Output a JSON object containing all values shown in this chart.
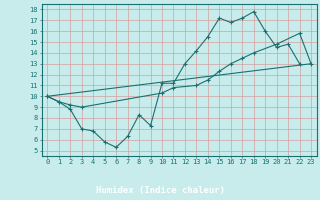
{
  "xlabel": "Humidex (Indice chaleur)",
  "bg_color": "#c8ecec",
  "line_color": "#1a7070",
  "grid_color": "#d4a0a0",
  "bottom_bar_color": "#2a8080",
  "xlim": [
    -0.5,
    23.5
  ],
  "ylim": [
    4.5,
    18.5
  ],
  "xticks": [
    0,
    1,
    2,
    3,
    4,
    5,
    6,
    7,
    8,
    9,
    10,
    11,
    12,
    13,
    14,
    15,
    16,
    17,
    18,
    19,
    20,
    21,
    22,
    23
  ],
  "yticks": [
    5,
    6,
    7,
    8,
    9,
    10,
    11,
    12,
    13,
    14,
    15,
    16,
    17,
    18
  ],
  "line1_x": [
    0,
    1,
    2,
    3,
    4,
    5,
    6,
    7,
    8,
    9,
    10,
    11,
    12,
    13,
    14,
    15,
    16,
    17,
    18,
    19,
    20,
    21,
    22
  ],
  "line1_y": [
    10.0,
    9.5,
    8.8,
    7.0,
    6.8,
    5.8,
    5.3,
    6.3,
    8.3,
    7.3,
    11.2,
    11.2,
    13.0,
    14.2,
    15.5,
    17.2,
    16.8,
    17.2,
    17.8,
    16.0,
    14.5,
    14.8,
    13.0
  ],
  "line2_x": [
    0,
    1,
    2,
    3,
    10,
    11,
    13,
    14,
    15,
    16,
    17,
    18,
    20,
    22,
    23
  ],
  "line2_y": [
    10.0,
    9.5,
    9.2,
    9.0,
    10.3,
    10.8,
    11.0,
    11.5,
    12.3,
    13.0,
    13.5,
    14.0,
    14.8,
    15.8,
    13.0
  ],
  "line3_x": [
    0,
    23
  ],
  "line3_y": [
    10.0,
    13.0
  ]
}
